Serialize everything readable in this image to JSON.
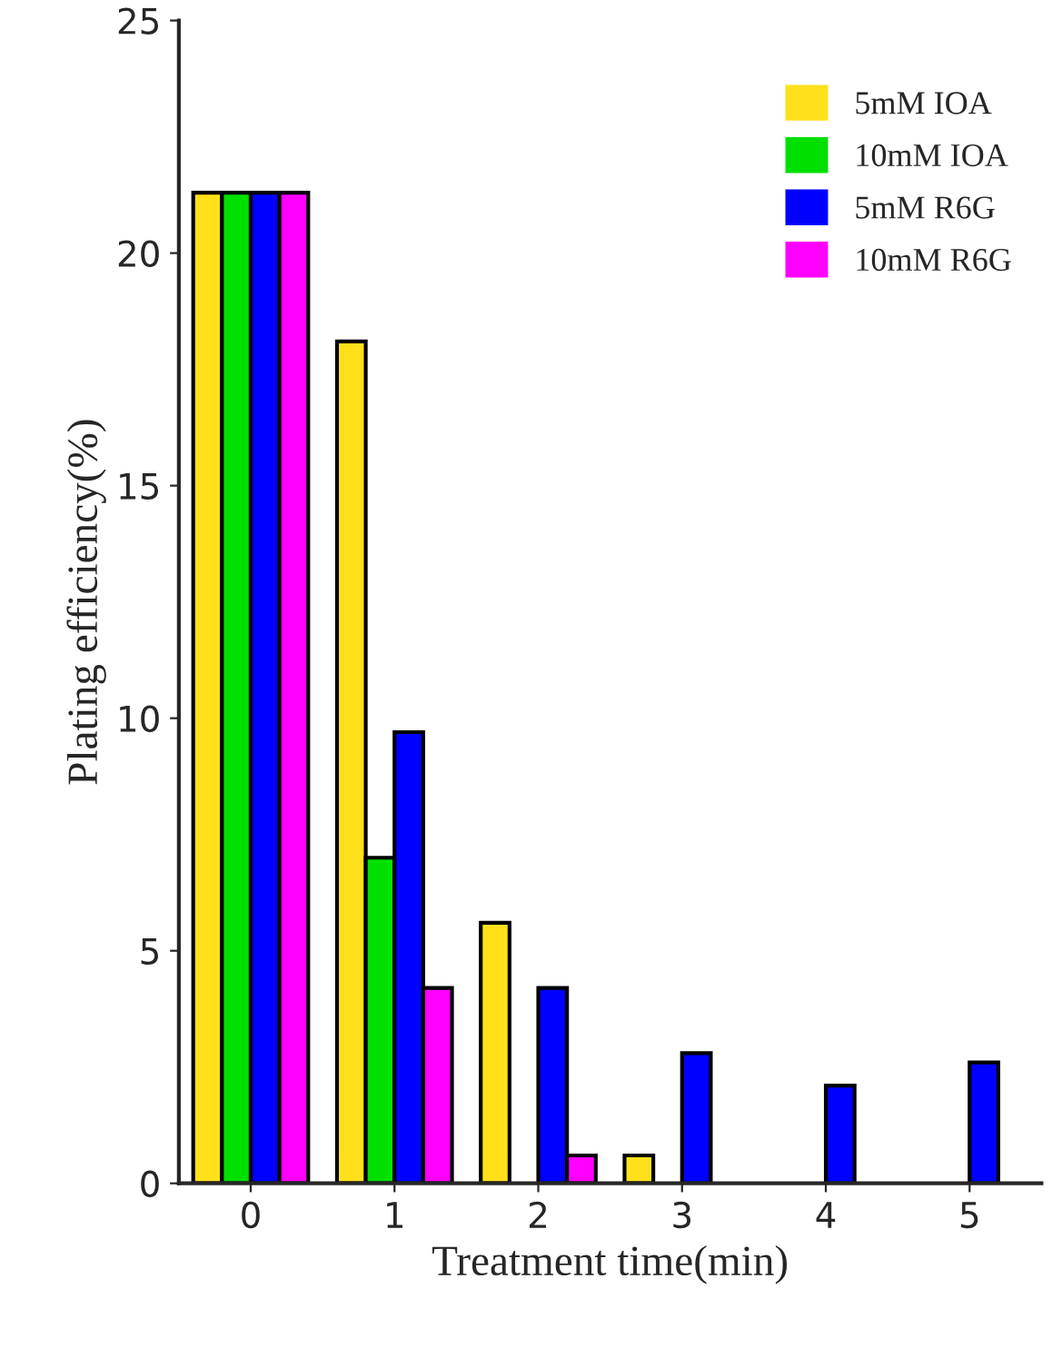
{
  "chart_data": {
    "type": "bar",
    "xlabel": "Treatment time(min)",
    "ylabel": "Plating efficiency(%)",
    "categories": [
      "0",
      "1",
      "2",
      "3",
      "4",
      "5"
    ],
    "series": [
      {
        "name": "5mM IOA",
        "color": "#ffe01a",
        "values": [
          21.3,
          18.1,
          5.6,
          0.6,
          null,
          null
        ]
      },
      {
        "name": "10mM IOA",
        "color": "#00e000",
        "values": [
          21.3,
          7.0,
          null,
          null,
          null,
          null
        ]
      },
      {
        "name": "5mM R6G",
        "color": "#0000ff",
        "values": [
          21.3,
          9.7,
          4.2,
          2.8,
          2.1,
          2.6
        ]
      },
      {
        "name": "10mM R6G",
        "color": "#ff00ff",
        "values": [
          21.3,
          4.2,
          0.6,
          null,
          null,
          null
        ]
      }
    ],
    "ylim": [
      0,
      25
    ],
    "yticks": [
      0,
      5,
      10,
      15,
      20,
      25
    ],
    "grid": false,
    "legend": "top right"
  }
}
